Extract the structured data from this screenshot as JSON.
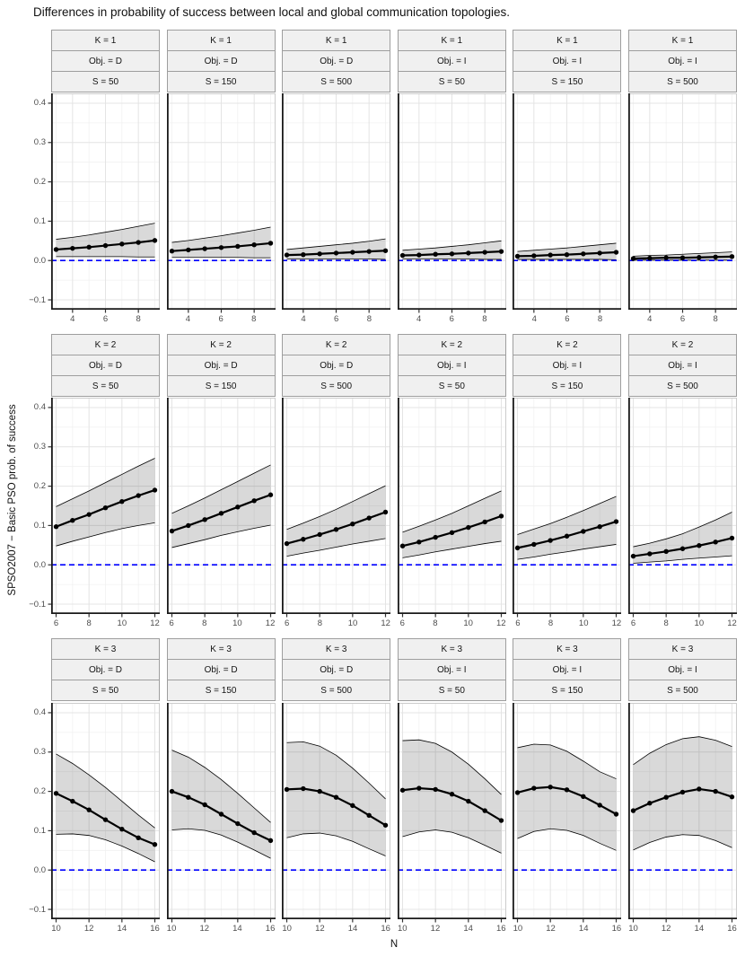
{
  "title": "Differences in probability of success between local and global communication topologies.",
  "colors": {
    "ribbon_fill": "rgba(0,0,0,0.15)",
    "ribbon_edge": "#000000",
    "series_line": "#000000",
    "point": "#000000",
    "reference_line": "#0000ff",
    "grid_major": "#e4e4e4",
    "grid_minor": "#f1f1f1",
    "panel_border": "#cccccc",
    "axis_line": "#1a1a1a",
    "tick_mark": "#333333",
    "strip_bg": "#f0f0f0",
    "strip_border": "#9e9e9e",
    "tick_text": "#4d4d4d"
  },
  "chart_data": {
    "type": "line",
    "title": "Differences in probability of success between local and global communication topologies.",
    "xlabel": "N",
    "ylabel": "SPSO2007 − Basic PSO prob. of success",
    "ylim": [
      -0.125,
      0.425
    ],
    "y_major_ticks": [
      0.4,
      0.3,
      0.2,
      0.1,
      0.0,
      -0.1
    ],
    "y_tick_labels": [
      "0.4",
      "0.3",
      "0.2",
      "0.1",
      "0.0",
      "−0.1"
    ],
    "reference_line": {
      "y": 0,
      "style": "dashed",
      "color": "#0000ff"
    },
    "legend": "none",
    "grid": true,
    "rows": [
      {
        "k": 1,
        "x": [
          3,
          4,
          5,
          6,
          7,
          8,
          9
        ],
        "xlim": [
          2.7,
          9.3
        ],
        "x_ticks": [
          4,
          6,
          8
        ],
        "panels": [
          {
            "strips": [
              "K = 1",
              "Obj. = D",
              "S = 50"
            ],
            "mean": [
              0.028,
              0.031,
              0.034,
              0.038,
              0.042,
              0.046,
              0.051
            ],
            "upper": [
              0.054,
              0.059,
              0.065,
              0.072,
              0.079,
              0.087,
              0.095
            ],
            "lower": [
              0.01,
              0.01,
              0.01,
              0.01,
              0.01,
              0.009,
              0.009
            ]
          },
          {
            "strips": [
              "K = 1",
              "Obj. = D",
              "S = 150"
            ],
            "mean": [
              0.024,
              0.027,
              0.03,
              0.033,
              0.036,
              0.04,
              0.044
            ],
            "upper": [
              0.046,
              0.051,
              0.057,
              0.063,
              0.07,
              0.077,
              0.085
            ],
            "lower": [
              0.008,
              0.008,
              0.008,
              0.008,
              0.008,
              0.007,
              0.007
            ]
          },
          {
            "strips": [
              "K = 1",
              "Obj. = D",
              "S = 500"
            ],
            "mean": [
              0.014,
              0.015,
              0.017,
              0.019,
              0.021,
              0.023,
              0.025
            ],
            "upper": [
              0.028,
              0.032,
              0.036,
              0.04,
              0.044,
              0.049,
              0.055
            ],
            "lower": [
              0.004,
              0.004,
              0.004,
              0.004,
              0.004,
              0.004,
              0.003
            ]
          },
          {
            "strips": [
              "K = 1",
              "Obj. = I",
              "S = 50"
            ],
            "mean": [
              0.013,
              0.014,
              0.016,
              0.017,
              0.019,
              0.021,
              0.023
            ],
            "upper": [
              0.026,
              0.029,
              0.032,
              0.036,
              0.04,
              0.045,
              0.05
            ],
            "lower": [
              0.004,
              0.004,
              0.004,
              0.004,
              0.004,
              0.003,
              0.003
            ]
          },
          {
            "strips": [
              "K = 1",
              "Obj. = I",
              "S = 150"
            ],
            "mean": [
              0.011,
              0.012,
              0.014,
              0.015,
              0.017,
              0.019,
              0.021
            ],
            "upper": [
              0.023,
              0.026,
              0.029,
              0.032,
              0.036,
              0.04,
              0.044
            ],
            "lower": [
              0.003,
              0.003,
              0.003,
              0.003,
              0.003,
              0.003,
              0.002
            ]
          },
          {
            "strips": [
              "K = 1",
              "Obj. = I",
              "S = 500"
            ],
            "mean": [
              0.005,
              0.006,
              0.007,
              0.007,
              0.008,
              0.009,
              0.01
            ],
            "upper": [
              0.011,
              0.013,
              0.014,
              0.016,
              0.018,
              0.02,
              0.022
            ],
            "lower": [
              0.001,
              0.001,
              0.001,
              0.001,
              0.001,
              0.001,
              0.001
            ]
          }
        ]
      },
      {
        "k": 2,
        "x": [
          6,
          7,
          8,
          9,
          10,
          11,
          12
        ],
        "xlim": [
          5.7,
          12.3
        ],
        "x_ticks": [
          6,
          8,
          10,
          12
        ],
        "panels": [
          {
            "strips": [
              "K = 2",
              "Obj. = D",
              "S = 50"
            ],
            "mean": [
              0.097,
              0.113,
              0.128,
              0.145,
              0.161,
              0.176,
              0.19
            ],
            "upper": [
              0.148,
              0.168,
              0.188,
              0.209,
              0.23,
              0.251,
              0.271
            ],
            "lower": [
              0.048,
              0.06,
              0.071,
              0.082,
              0.092,
              0.1,
              0.107
            ]
          },
          {
            "strips": [
              "K = 2",
              "Obj. = D",
              "S = 150"
            ],
            "mean": [
              0.086,
              0.1,
              0.115,
              0.131,
              0.147,
              0.163,
              0.178
            ],
            "upper": [
              0.131,
              0.15,
              0.17,
              0.191,
              0.212,
              0.233,
              0.254
            ],
            "lower": [
              0.044,
              0.054,
              0.064,
              0.075,
              0.084,
              0.093,
              0.101
            ]
          },
          {
            "strips": [
              "K = 2",
              "Obj. = D",
              "S = 500"
            ],
            "mean": [
              0.054,
              0.065,
              0.077,
              0.09,
              0.104,
              0.119,
              0.134
            ],
            "upper": [
              0.09,
              0.106,
              0.123,
              0.141,
              0.161,
              0.181,
              0.201
            ],
            "lower": [
              0.022,
              0.03,
              0.037,
              0.045,
              0.053,
              0.06,
              0.067
            ]
          },
          {
            "strips": [
              "K = 2",
              "Obj. = I",
              "S = 50"
            ],
            "mean": [
              0.048,
              0.058,
              0.07,
              0.082,
              0.095,
              0.109,
              0.124
            ],
            "upper": [
              0.083,
              0.098,
              0.114,
              0.131,
              0.15,
              0.169,
              0.188
            ],
            "lower": [
              0.018,
              0.025,
              0.033,
              0.04,
              0.047,
              0.054,
              0.06
            ]
          },
          {
            "strips": [
              "K = 2",
              "Obj. = I",
              "S = 150"
            ],
            "mean": [
              0.043,
              0.052,
              0.062,
              0.073,
              0.085,
              0.097,
              0.11
            ],
            "upper": [
              0.077,
              0.091,
              0.105,
              0.121,
              0.138,
              0.156,
              0.174
            ],
            "lower": [
              0.014,
              0.02,
              0.027,
              0.033,
              0.04,
              0.046,
              0.052
            ]
          },
          {
            "strips": [
              "K = 2",
              "Obj. = I",
              "S = 500"
            ],
            "mean": [
              0.022,
              0.028,
              0.034,
              0.041,
              0.049,
              0.058,
              0.068
            ],
            "upper": [
              0.046,
              0.055,
              0.066,
              0.079,
              0.096,
              0.114,
              0.134
            ],
            "lower": [
              0.004,
              0.007,
              0.01,
              0.014,
              0.017,
              0.02,
              0.023
            ]
          }
        ]
      },
      {
        "k": 3,
        "x": [
          10,
          11,
          12,
          13,
          14,
          15,
          16
        ],
        "xlim": [
          9.7,
          16.3
        ],
        "x_ticks": [
          10,
          12,
          14,
          16
        ],
        "panels": [
          {
            "strips": [
              "K = 3",
              "Obj. = D",
              "S = 50"
            ],
            "mean": [
              0.195,
              0.175,
              0.153,
              0.128,
              0.104,
              0.082,
              0.065
            ],
            "upper": [
              0.295,
              0.271,
              0.242,
              0.21,
              0.175,
              0.14,
              0.107
            ],
            "lower": [
              0.091,
              0.092,
              0.088,
              0.077,
              0.061,
              0.042,
              0.021
            ]
          },
          {
            "strips": [
              "K = 3",
              "Obj. = D",
              "S = 150"
            ],
            "mean": [
              0.2,
              0.185,
              0.166,
              0.142,
              0.118,
              0.095,
              0.075
            ],
            "upper": [
              0.305,
              0.287,
              0.261,
              0.23,
              0.195,
              0.158,
              0.121
            ],
            "lower": [
              0.102,
              0.105,
              0.101,
              0.089,
              0.071,
              0.051,
              0.03
            ]
          },
          {
            "strips": [
              "K = 3",
              "Obj. = D",
              "S = 500"
            ],
            "mean": [
              0.205,
              0.207,
              0.2,
              0.185,
              0.164,
              0.139,
              0.114
            ],
            "upper": [
              0.324,
              0.326,
              0.315,
              0.292,
              0.259,
              0.221,
              0.181
            ],
            "lower": [
              0.082,
              0.092,
              0.094,
              0.087,
              0.073,
              0.054,
              0.036
            ]
          },
          {
            "strips": [
              "K = 3",
              "Obj. = I",
              "S = 50"
            ],
            "mean": [
              0.203,
              0.208,
              0.205,
              0.193,
              0.175,
              0.151,
              0.126
            ],
            "upper": [
              0.329,
              0.331,
              0.322,
              0.3,
              0.269,
              0.232,
              0.192
            ],
            "lower": [
              0.085,
              0.097,
              0.102,
              0.096,
              0.082,
              0.063,
              0.043
            ]
          },
          {
            "strips": [
              "K = 3",
              "Obj. = I",
              "S = 150"
            ],
            "mean": [
              0.197,
              0.208,
              0.211,
              0.204,
              0.187,
              0.165,
              0.142
            ],
            "upper": [
              0.311,
              0.32,
              0.318,
              0.302,
              0.277,
              0.25,
              0.232
            ],
            "lower": [
              0.08,
              0.098,
              0.105,
              0.101,
              0.088,
              0.068,
              0.05
            ]
          },
          {
            "strips": [
              "K = 3",
              "Obj. = I",
              "S = 500"
            ],
            "mean": [
              0.151,
              0.17,
              0.185,
              0.198,
              0.206,
              0.2,
              0.186
            ],
            "upper": [
              0.268,
              0.297,
              0.319,
              0.334,
              0.339,
              0.33,
              0.314
            ],
            "lower": [
              0.051,
              0.07,
              0.084,
              0.09,
              0.088,
              0.075,
              0.057
            ]
          }
        ]
      }
    ]
  }
}
